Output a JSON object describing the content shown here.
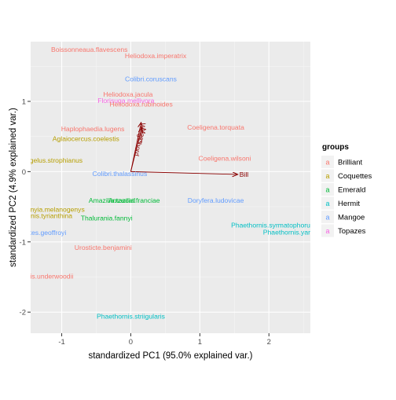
{
  "chart_data": {
    "type": "scatter",
    "title": "",
    "xlabel": "standardized PC1 (95.0% explained var.)",
    "ylabel": "standardized PC2 (4.9% explained var.)",
    "xlim": [
      -1.45,
      2.6
    ],
    "ylim": [
      -2.3,
      1.85
    ],
    "x_ticks": [
      -1,
      0,
      1,
      2
    ],
    "y_ticks": [
      -2,
      -1,
      0,
      1
    ],
    "x_tick_labels": [
      "-1",
      "0",
      "1",
      "2"
    ],
    "y_tick_labels": [
      "-2",
      "-1",
      "0",
      "1"
    ],
    "grid": true,
    "legend_position": "right",
    "legend": {
      "title": "groups",
      "entries": [
        {
          "name": "Brilliant",
          "color": "#F8766D"
        },
        {
          "name": "Coquettes",
          "color": "#B79F00"
        },
        {
          "name": "Emerald",
          "color": "#00BA38"
        },
        {
          "name": "Hermit",
          "color": "#00BFC4"
        },
        {
          "name": "Mangoe",
          "color": "#619CFF"
        },
        {
          "name": "Topazes",
          "color": "#F564E3"
        }
      ],
      "key_glyph": "a"
    },
    "points": [
      {
        "label": "Boissonneaua.flavescens",
        "x": -0.6,
        "y": 1.74,
        "group": "Brilliant"
      },
      {
        "label": "Heliodoxa.imperatrix",
        "x": 0.36,
        "y": 1.65,
        "group": "Brilliant"
      },
      {
        "label": "Colibri.coruscans",
        "x": 0.29,
        "y": 1.32,
        "group": "Mangoe"
      },
      {
        "label": "Heliodoxa.jacula",
        "x": -0.04,
        "y": 1.1,
        "group": "Brilliant"
      },
      {
        "label": "Florisuga.mellivora",
        "x": -0.07,
        "y": 1.01,
        "group": "Topazes"
      },
      {
        "label": "Heliodoxa.rubinoides",
        "x": 0.15,
        "y": 0.96,
        "group": "Brilliant"
      },
      {
        "label": "Coeligena.torquata",
        "x": 1.23,
        "y": 0.63,
        "group": "Brilliant"
      },
      {
        "label": "Haplophaedia.lugens",
        "x": -0.55,
        "y": 0.61,
        "group": "Brilliant"
      },
      {
        "label": "Aglaiocercus.coelestis",
        "x": -0.65,
        "y": 0.47,
        "group": "Coquettes"
      },
      {
        "label": "Coeligena.wilsoni",
        "x": 1.36,
        "y": 0.19,
        "group": "Brilliant"
      },
      {
        "label": "Heliangelus.strophianus",
        "x": -1.22,
        "y": 0.16,
        "group": "Coquettes"
      },
      {
        "label": "Colibri.thalassinus",
        "x": -0.16,
        "y": -0.03,
        "group": "Mangoe"
      },
      {
        "label": "Amazilia.tzacatl",
        "x": -0.27,
        "y": -0.41,
        "group": "Emerald"
      },
      {
        "label": "Amazilia.franciae",
        "x": 0.05,
        "y": -0.41,
        "group": "Emerald"
      },
      {
        "label": "Doryfera.ludovicae",
        "x": 1.23,
        "y": -0.41,
        "group": "Mangoe"
      },
      {
        "label": "Adelomyia.melanogenys",
        "x": -1.2,
        "y": -0.54,
        "group": "Coquettes"
      },
      {
        "label": "Lophornis.tyrianthina",
        "x": -1.3,
        "y": -0.63,
        "group": "Coquettes"
      },
      {
        "label": "Thalurania.fannyi",
        "x": -0.35,
        "y": -0.66,
        "group": "Emerald"
      },
      {
        "label": "Phaethornis.syrmatophorus",
        "x": 2.05,
        "y": -0.76,
        "group": "Hermit"
      },
      {
        "label": "Phaethornis.yaruqui",
        "x": 2.35,
        "y": -0.86,
        "group": "Hermit"
      },
      {
        "label": "Schistes.geoffroyi",
        "x": -1.32,
        "y": -0.87,
        "group": "Mangoe"
      },
      {
        "label": "Urosticte.benjamini",
        "x": -0.4,
        "y": -1.08,
        "group": "Brilliant"
      },
      {
        "label": "Phaethornis.striigularis",
        "x": 0,
        "y": -2.06,
        "group": "Hermit"
      },
      {
        "label": "Eriocnemis.underwoodii",
        "x": -1.35,
        "y": -1.49,
        "group": "Brilliant"
      }
    ],
    "arrows": [
      {
        "label": "Bill",
        "x": 1.55,
        "y": -0.04
      },
      {
        "label": "WingChord",
        "x": 0.15,
        "y": 0.7
      },
      {
        "label": "Mass",
        "x": 0.16,
        "y": 0.63
      }
    ],
    "arrow_color": "#8B0000",
    "panel_color": "#EBEBEB"
  }
}
